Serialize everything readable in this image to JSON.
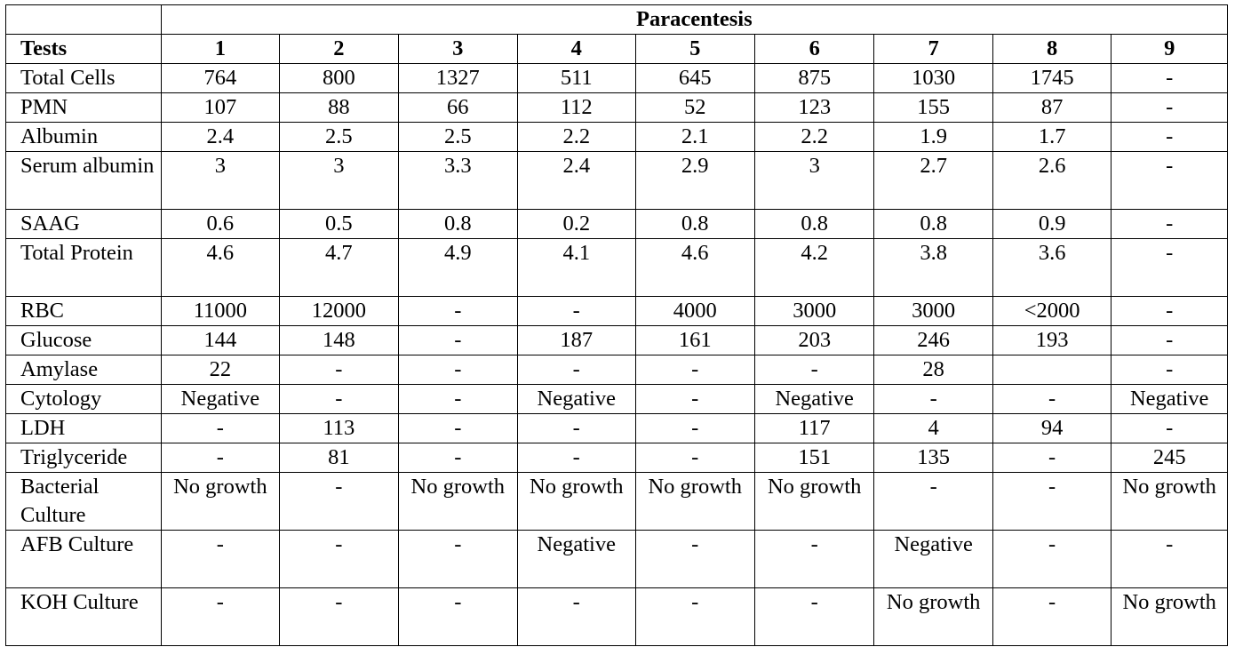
{
  "table": {
    "super_header": "Paracentesis",
    "tests_header": "Tests",
    "columns": [
      "1",
      "2",
      "3",
      "4",
      "5",
      "6",
      "7",
      "8",
      "9"
    ],
    "rows": [
      {
        "name": "Total Cells",
        "values": [
          "764",
          "800",
          "1327",
          "511",
          "645",
          "875",
          "1030",
          "1745",
          "-"
        ]
      },
      {
        "name": "PMN",
        "values": [
          "107",
          "88",
          "66",
          "112",
          "52",
          "123",
          "155",
          "87",
          "-"
        ]
      },
      {
        "name": "Albumin",
        "values": [
          "2.4",
          "2.5",
          "2.5",
          "2.2",
          "2.1",
          "2.2",
          "1.9",
          "1.7",
          "-"
        ]
      },
      {
        "name": "Serum albumin",
        "values": [
          "3",
          "3",
          "3.3",
          "2.4",
          "2.9",
          "3",
          "2.7",
          "2.6",
          "-"
        ]
      },
      {
        "name": "SAAG",
        "values": [
          "0.6",
          "0.5",
          "0.8",
          "0.2",
          "0.8",
          "0.8",
          "0.8",
          "0.9",
          "-"
        ]
      },
      {
        "name": "Total Protein",
        "values": [
          "4.6",
          "4.7",
          "4.9",
          "4.1",
          "4.6",
          "4.2",
          "3.8",
          "3.6",
          "-"
        ]
      },
      {
        "name": "RBC",
        "values": [
          "11000",
          "12000",
          "-",
          "-",
          "4000",
          "3000",
          "3000",
          "<2000",
          "-"
        ]
      },
      {
        "name": "Glucose",
        "values": [
          "144",
          "148",
          "-",
          "187",
          "161",
          "203",
          "246",
          "193",
          "-"
        ]
      },
      {
        "name": "Amylase",
        "values": [
          "22",
          "-",
          "-",
          "-",
          "-",
          "-",
          "28",
          "",
          "-"
        ]
      },
      {
        "name": "Cytology",
        "values": [
          "Negative",
          "-",
          "-",
          "Negative",
          "-",
          "Negative",
          "-",
          "-",
          "Negative"
        ]
      },
      {
        "name": "LDH",
        "values": [
          "-",
          "113",
          "-",
          "-",
          "-",
          "117",
          "4",
          "94",
          "-"
        ]
      },
      {
        "name": "Triglyceride",
        "values": [
          "-",
          "81",
          "-",
          "-",
          "-",
          "151",
          "135",
          "-",
          "245"
        ]
      },
      {
        "name": "Bacterial Culture",
        "values": [
          "No growth",
          "-",
          "No growth",
          "No growth",
          "No growth",
          "No growth",
          "-",
          "-",
          "No growth"
        ]
      },
      {
        "name": "AFB Culture",
        "values": [
          "-",
          "-",
          "-",
          "Negative",
          "-",
          "-",
          "Negative",
          "-",
          "-"
        ]
      },
      {
        "name": "KOH Culture",
        "values": [
          "-",
          "-",
          "-",
          "-",
          "-",
          "-",
          "No growth",
          "-",
          "No growth"
        ]
      }
    ]
  }
}
